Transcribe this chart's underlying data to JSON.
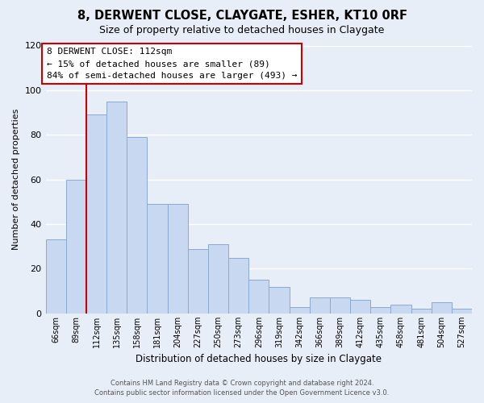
{
  "title": "8, DERWENT CLOSE, CLAYGATE, ESHER, KT10 0RF",
  "subtitle": "Size of property relative to detached houses in Claygate",
  "xlabel": "Distribution of detached houses by size in Claygate",
  "ylabel": "Number of detached properties",
  "categories": [
    "66sqm",
    "89sqm",
    "112sqm",
    "135sqm",
    "158sqm",
    "181sqm",
    "204sqm",
    "227sqm",
    "250sqm",
    "273sqm",
    "296sqm",
    "319sqm",
    "342sqm",
    "366sqm",
    "389sqm",
    "412sqm",
    "435sqm",
    "458sqm",
    "481sqm",
    "504sqm",
    "527sqm"
  ],
  "values": [
    33,
    60,
    89,
    95,
    79,
    49,
    49,
    29,
    31,
    25,
    15,
    12,
    3,
    7,
    7,
    6,
    3,
    4,
    2,
    5,
    2
  ],
  "bar_color": "#c8d8f0",
  "bar_edge_color": "#8aaad4",
  "vline_x_index": 2,
  "vline_color": "#cc0000",
  "annotation_title": "8 DERWENT CLOSE: 112sqm",
  "annotation_line1": "← 15% of detached houses are smaller (89)",
  "annotation_line2": "84% of semi-detached houses are larger (493) →",
  "annotation_box_color": "#cc0000",
  "ylim": [
    0,
    120
  ],
  "yticks": [
    0,
    20,
    40,
    60,
    80,
    100,
    120
  ],
  "footer_line1": "Contains HM Land Registry data © Crown copyright and database right 2024.",
  "footer_line2": "Contains public sector information licensed under the Open Government Licence v3.0.",
  "bg_color": "#e8eef8",
  "plot_bg_color": "#e8eef8",
  "grid_color": "#ffffff"
}
